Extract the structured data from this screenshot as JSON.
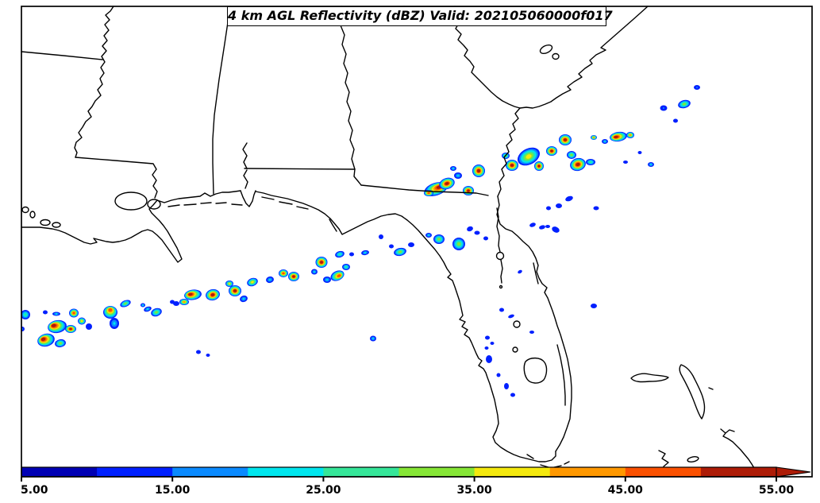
{
  "title": {
    "text": "4 km AGL Reflectivity (dBZ) Valid: 202105060000f017"
  },
  "colorbar": {
    "ticks": [
      "5.00",
      "15.00",
      "25.00",
      "35.00",
      "45.00",
      "55.00"
    ],
    "range": [
      5,
      55
    ],
    "units": "dBZ",
    "colors": [
      "#0000b4",
      "#0020ff",
      "#0a8aff",
      "#00e6ee",
      "#35e699",
      "#86e636",
      "#f4e90e",
      "#ff9800",
      "#fa5000",
      "#ad1c07"
    ],
    "arrow_color": "#ad1c07"
  },
  "map": {
    "region": "Southeastern United States and Gulf of Mexico",
    "line_color": "#000000",
    "background": "#ffffff"
  },
  "reflectivity_scale": [
    {
      "t": 5,
      "c": "#0000b4"
    },
    {
      "t": 10,
      "c": "#0020ff"
    },
    {
      "t": 15,
      "c": "#0a8aff"
    },
    {
      "t": 20,
      "c": "#00e6ee"
    },
    {
      "t": 25,
      "c": "#35e699"
    },
    {
      "t": 30,
      "c": "#86e636"
    },
    {
      "t": 35,
      "c": "#f4e90e"
    },
    {
      "t": 40,
      "c": "#ff9800"
    },
    {
      "t": 45,
      "c": "#fa5000"
    },
    {
      "t": 50,
      "c": "#ad1c07"
    }
  ],
  "cell_format": [
    "x",
    "y",
    "rx",
    "ry",
    "rot_deg",
    "max_dbz",
    "core_offset_x",
    "core_offset_y"
  ],
  "storm_cells": [
    [
      549,
      238,
      15,
      8,
      -18,
      53,
      5,
      -1
    ],
    [
      563,
      231,
      10,
      7,
      -18,
      53,
      0,
      0
    ],
    [
      540,
      243,
      6,
      4,
      0,
      45,
      0,
      0
    ],
    [
      590,
      240,
      7,
      6,
      0,
      50,
      0,
      0
    ],
    [
      577,
      221,
      5,
      4,
      0,
      22,
      0,
      0
    ],
    [
      571,
      212,
      4,
      3,
      0,
      20,
      0,
      0
    ],
    [
      603,
      215,
      8,
      8,
      0,
      50,
      0,
      0
    ],
    [
      645,
      208,
      8,
      7,
      0,
      50,
      0,
      0
    ],
    [
      637,
      196,
      5,
      4,
      0,
      30,
      0,
      0
    ],
    [
      666,
      197,
      15,
      10,
      -28,
      37,
      0,
      0
    ],
    [
      695,
      190,
      7,
      6,
      0,
      50,
      0,
      0
    ],
    [
      679,
      209,
      6,
      6,
      0,
      50,
      0,
      0
    ],
    [
      712,
      176,
      8,
      7,
      0,
      50,
      0,
      0
    ],
    [
      728,
      207,
      10,
      8,
      -15,
      53,
      0,
      0
    ],
    [
      720,
      195,
      6,
      5,
      0,
      30,
      0,
      0
    ],
    [
      744,
      204,
      6,
      4,
      0,
      25,
      0,
      0
    ],
    [
      779,
      172,
      11,
      6,
      -8,
      53,
      -3,
      0
    ],
    [
      794,
      170,
      5,
      4,
      0,
      42,
      0,
      0
    ],
    [
      748,
      173,
      4,
      3,
      0,
      43,
      0,
      0
    ],
    [
      762,
      178,
      4,
      3,
      0,
      20,
      0,
      0
    ],
    [
      820,
      207,
      4,
      3,
      0,
      20,
      0,
      0
    ],
    [
      788,
      204,
      3,
      2,
      0,
      12,
      0,
      0
    ],
    [
      806,
      192,
      2.5,
      2,
      0,
      12,
      0,
      0
    ],
    [
      836,
      136,
      4.5,
      3.5,
      0,
      18,
      0,
      0
    ],
    [
      862,
      131,
      8,
      5,
      -15,
      30,
      0,
      0
    ],
    [
      878,
      110,
      4,
      3,
      0,
      16,
      0,
      0
    ],
    [
      851,
      152,
      3,
      2.5,
      0,
      12,
      0,
      0
    ],
    [
      704,
      259,
      4,
      3,
      0,
      12,
      0,
      0
    ],
    [
      717,
      250,
      5,
      3,
      -20,
      12,
      0,
      0
    ],
    [
      691,
      262,
      3,
      2.5,
      0,
      12,
      0,
      0
    ],
    [
      751,
      262,
      3.5,
      2.5,
      0,
      12,
      0,
      0
    ],
    [
      700,
      289,
      5,
      3.5,
      25,
      14,
      0,
      0
    ],
    [
      683,
      286,
      4,
      2.5,
      -15,
      12,
      0,
      0
    ],
    [
      748,
      385,
      4,
      3,
      0,
      12,
      0,
      0
    ],
    [
      553,
      301,
      7,
      6,
      0,
      30,
      0,
      0
    ],
    [
      540,
      296,
      4,
      3,
      0,
      20,
      0,
      0
    ],
    [
      578,
      307,
      8,
      8,
      0,
      33,
      0,
      0
    ],
    [
      592,
      288,
      4,
      3,
      -20,
      14,
      0,
      0
    ],
    [
      601,
      293,
      3.5,
      2.5,
      0,
      14,
      0,
      0
    ],
    [
      612,
      300,
      3,
      2.5,
      0,
      12,
      0,
      0
    ],
    [
      504,
      317,
      8,
      5,
      -12,
      33,
      0,
      0
    ],
    [
      518,
      308,
      4,
      3,
      0,
      14,
      0,
      0
    ],
    [
      493,
      310,
      3,
      2.5,
      0,
      12,
      0,
      0
    ],
    [
      480,
      298,
      3,
      3,
      0,
      12,
      0,
      0
    ],
    [
      460,
      318,
      5,
      3,
      -10,
      20,
      0,
      0
    ],
    [
      443,
      320,
      3,
      2.5,
      0,
      12,
      0,
      0
    ],
    [
      428,
      320,
      6,
      4,
      -15,
      28,
      0,
      0
    ],
    [
      425,
      347,
      9,
      6,
      -25,
      48,
      2,
      1
    ],
    [
      436,
      336,
      5,
      4,
      0,
      25,
      0,
      0
    ],
    [
      405,
      330,
      7.5,
      7,
      0,
      50,
      0,
      0
    ],
    [
      412,
      352,
      5,
      4,
      0,
      20,
      0,
      0
    ],
    [
      396,
      342,
      4,
      3.5,
      0,
      20,
      0,
      0
    ],
    [
      370,
      348,
      7,
      6,
      0,
      50,
      0,
      0
    ],
    [
      357,
      344,
      6,
      5,
      0,
      47,
      0,
      0
    ],
    [
      340,
      352,
      5,
      4,
      -15,
      22,
      0,
      0
    ],
    [
      318,
      355,
      7,
      5,
      -20,
      38,
      0,
      0
    ],
    [
      470,
      426,
      4,
      3.5,
      0,
      20,
      0,
      0
    ],
    [
      296,
      366,
      8,
      7,
      0,
      50,
      0,
      0
    ],
    [
      289,
      357,
      5,
      4,
      0,
      36,
      0,
      0
    ],
    [
      307,
      376,
      5,
      4,
      -20,
      20,
      0,
      0
    ],
    [
      268,
      371,
      9,
      7,
      -12,
      53,
      0,
      0
    ],
    [
      243,
      371,
      11,
      6.5,
      -8,
      53,
      -3,
      -1
    ],
    [
      232,
      380,
      6,
      4,
      0,
      40,
      0,
      0
    ],
    [
      222,
      382,
      4,
      3,
      0,
      14,
      0,
      0
    ],
    [
      217,
      380,
      3,
      2.5,
      0,
      12,
      0,
      0
    ],
    [
      197,
      393,
      7,
      5,
      -20,
      30,
      0,
      0
    ],
    [
      186,
      389,
      5,
      3,
      -20,
      22,
      0,
      0
    ],
    [
      158,
      382,
      7,
      4,
      -22,
      33,
      0,
      0
    ],
    [
      180,
      384,
      3,
      2.5,
      0,
      20,
      0,
      0
    ],
    [
      139,
      393,
      9,
      8,
      0,
      48,
      0,
      -3
    ],
    [
      144,
      407,
      6,
      7,
      0,
      20,
      0,
      0
    ],
    [
      93,
      394,
      6,
      5.5,
      0,
      47,
      0,
      0
    ],
    [
      103,
      404,
      5,
      4.5,
      0,
      36,
      0,
      0
    ],
    [
      72,
      411,
      12,
      8,
      -10,
      50,
      -4,
      -2
    ],
    [
      89,
      414,
      7,
      5,
      0,
      50,
      0,
      0
    ],
    [
      112,
      411,
      4,
      4,
      0,
      14,
      0,
      0
    ],
    [
      58,
      428,
      11,
      8,
      -15,
      50,
      -3,
      -2
    ],
    [
      76,
      432,
      7,
      5,
      -10,
      30,
      0,
      0
    ],
    [
      57,
      393,
      3,
      2.5,
      0,
      12,
      0,
      0
    ],
    [
      71,
      395,
      5,
      2.5,
      0,
      20,
      0,
      0
    ],
    [
      32,
      396,
      6,
      6,
      0,
      25,
      0,
      0
    ],
    [
      28,
      414,
      3,
      3,
      0,
      18,
      0,
      0
    ],
    [
      250,
      443,
      3,
      2.5,
      0,
      12,
      0,
      0
    ],
    [
      262,
      447,
      2.5,
      2,
      0,
      12,
      0,
      0
    ],
    [
      655,
      342,
      3,
      2,
      -30,
      12,
      0,
      0
    ],
    [
      632,
      390,
      3,
      2.5,
      0,
      12,
      0,
      0
    ],
    [
      644,
      398,
      4,
      2,
      -20,
      12,
      0,
      0
    ],
    [
      614,
      425,
      3,
      2.5,
      0,
      12,
      0,
      0
    ],
    [
      620,
      432,
      2.5,
      2,
      0,
      12,
      0,
      0
    ],
    [
      613,
      438,
      2.5,
      2,
      0,
      12,
      0,
      0
    ],
    [
      616,
      452,
      4,
      5,
      0,
      12,
      0,
      0
    ],
    [
      628,
      472,
      2.5,
      2.5,
      0,
      12,
      0,
      0
    ],
    [
      670,
      418,
      3,
      2,
      0,
      12,
      0,
      0
    ],
    [
      638,
      486,
      3,
      4,
      0,
      12,
      0,
      0
    ],
    [
      646,
      497,
      3,
      2.5,
      0,
      12,
      0,
      0
    ],
    [
      671,
      283,
      4,
      2.5,
      -20,
      12,
      0,
      0
    ],
    [
      690,
      285,
      3,
      2,
      0,
      12,
      0,
      0
    ]
  ]
}
